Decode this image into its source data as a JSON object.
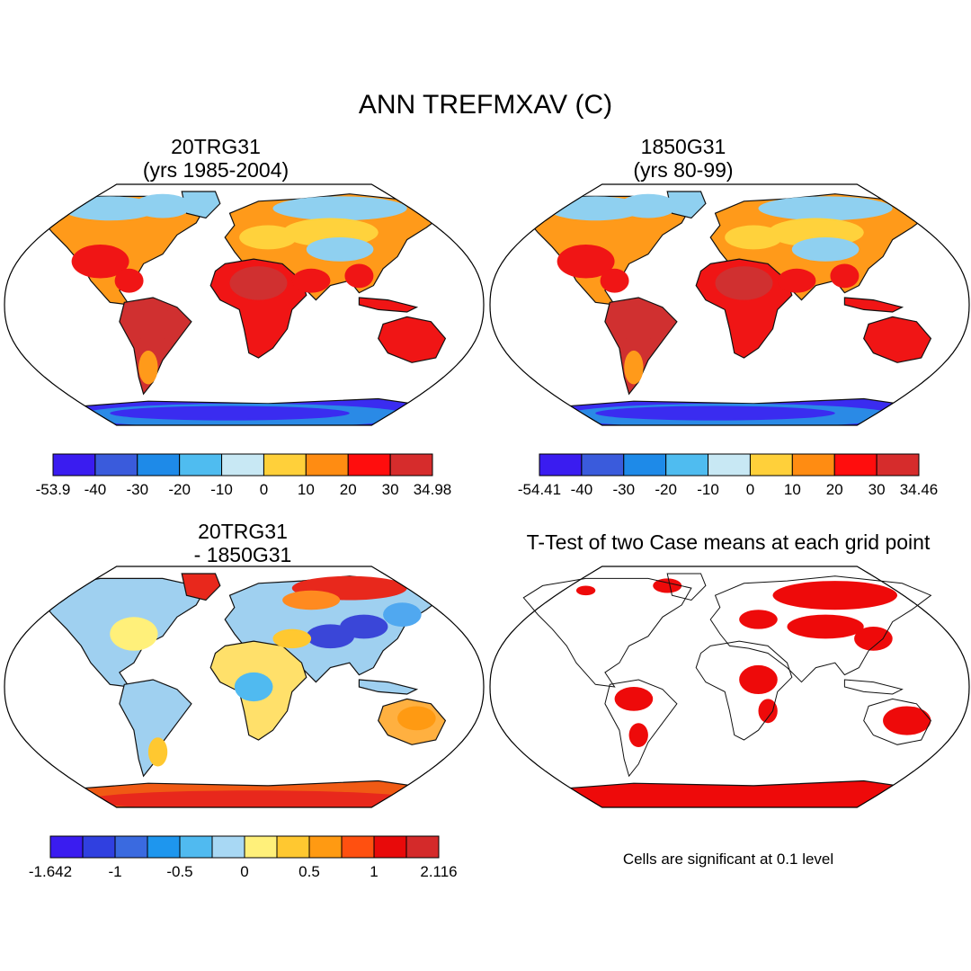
{
  "figure": {
    "title": "ANN TREFMXAV (C)"
  },
  "panels": [
    {
      "id": "case1",
      "title_line1": "20TRG31",
      "title_line2": "(yrs 1985-2004)",
      "colorbar": {
        "colors": [
          "#3a1cf0",
          "#3a5bdc",
          "#1e8ae8",
          "#4fbcf0",
          "#c8e8f4",
          "#ffd03a",
          "#ff8c12",
          "#ff0d0d",
          "#d62c2c"
        ],
        "labels": [
          "-53.9",
          "-40",
          "-30",
          "-20",
          "-10",
          "0",
          "10",
          "20",
          "30",
          "34.98"
        ]
      },
      "colors": {
        "warm": "#f01515",
        "hot": "#d03030",
        "mid": "#ff9a1a",
        "temperate": "#ffd23c",
        "cool": "#8fd0f0",
        "cold": "#2a8ae6",
        "antarctic": "#3a2cf0"
      }
    },
    {
      "id": "case2",
      "title_line1": "1850G31",
      "title_line2": "(yrs 80-99)",
      "colorbar": {
        "colors": [
          "#3a1cf0",
          "#3a5bdc",
          "#1e8ae8",
          "#4fbcf0",
          "#c8e8f4",
          "#ffd03a",
          "#ff8c12",
          "#ff0d0d",
          "#d62c2c"
        ],
        "labels": [
          "-54.41",
          "-40",
          "-30",
          "-20",
          "-10",
          "0",
          "10",
          "20",
          "30",
          "34.46"
        ]
      },
      "colors": {
        "warm": "#f01515",
        "hot": "#d03030",
        "mid": "#ff9a1a",
        "temperate": "#ffd23c",
        "cool": "#8fd0f0",
        "cold": "#2a8ae6",
        "antarctic": "#3a2cf0"
      }
    },
    {
      "id": "difference",
      "title_line1": "20TRG31",
      "title_line2": "- 1850G31",
      "colorbar": {
        "colors": [
          "#3a1cf0",
          "#3040e0",
          "#3a6ae0",
          "#1e96ee",
          "#50baf0",
          "#a8d8f4",
          "#fff07a",
          "#ffc830",
          "#ff9a12",
          "#ff5010",
          "#e80a0a",
          "#d42a2a"
        ],
        "labels": [
          "-1.642",
          "-1",
          "-0.5",
          "0",
          "0.5",
          "1",
          "2.116"
        ]
      },
      "colors": {
        "land": "#9fd0f0",
        "warm_patch": "#ffb040",
        "hot_patch": "#e8281c",
        "cold_patch": "#3a46d8",
        "antarctic": "#f05a14"
      }
    },
    {
      "id": "ttest",
      "title_line1": "T-Test of two Case means at each grid point",
      "title_line2": "",
      "colors": {
        "significant": "#ee0a0a"
      }
    }
  ],
  "note": "Cells are significant at 0.1 level"
}
